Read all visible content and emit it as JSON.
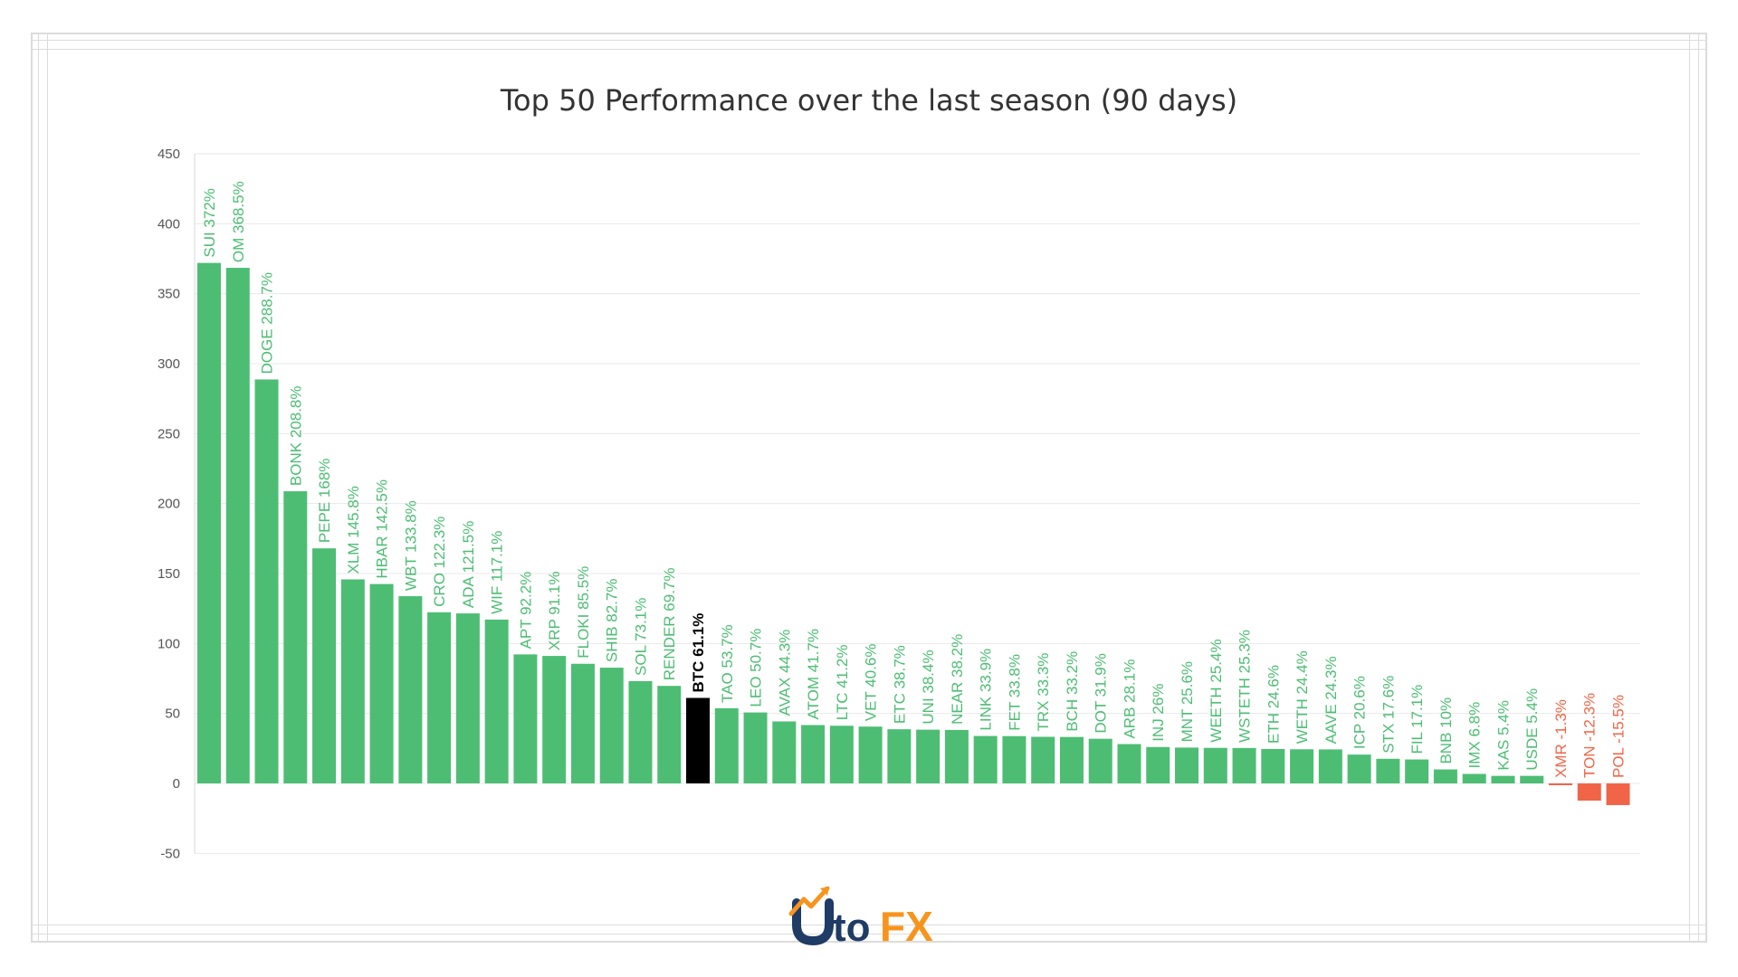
{
  "colors": {
    "positive": "#4dbd74",
    "negative": "#f16448",
    "highlight": "#000000",
    "grid": "#e8e8e8",
    "axis_text": "#555555"
  },
  "chart_data": {
    "type": "bar",
    "title": "Top 50 Performance over the last season (90 days)",
    "xlabel": "",
    "ylabel": "",
    "ylim": [
      -50,
      450
    ],
    "yticks": [
      450,
      400,
      350,
      300,
      250,
      200,
      150,
      100,
      50,
      0,
      -50
    ],
    "grid": true,
    "categories": [
      "SUI",
      "OM",
      "DOGE",
      "BONK",
      "PEPE",
      "XLM",
      "HBAR",
      "WBT",
      "CRO",
      "ADA",
      "WIF",
      "APT",
      "XRP",
      "FLOKI",
      "SHIB",
      "SOL",
      "RENDER",
      "BTC",
      "TAO",
      "LEO",
      "AVAX",
      "ATOM",
      "LTC",
      "VET",
      "ETC",
      "UNI",
      "NEAR",
      "LINK",
      "FET",
      "TRX",
      "BCH",
      "DOT",
      "ARB",
      "INJ",
      "MNT",
      "WEETH",
      "WSTETH",
      "ETH",
      "WETH",
      "AAVE",
      "ICP",
      "STX",
      "FIL",
      "BNB",
      "IMX",
      "KAS",
      "USDE",
      "XMR",
      "TON",
      "POL"
    ],
    "values": [
      372,
      368.5,
      288.7,
      208.8,
      168,
      145.8,
      142.5,
      133.8,
      122.3,
      121.5,
      117.1,
      92.2,
      91.1,
      85.5,
      82.7,
      73.1,
      69.7,
      61.1,
      53.7,
      50.7,
      44.3,
      41.7,
      41.2,
      40.6,
      38.7,
      38.4,
      38.2,
      33.9,
      33.8,
      33.3,
      33.2,
      31.9,
      28.1,
      26,
      25.6,
      25.4,
      25.3,
      24.6,
      24.4,
      24.3,
      20.6,
      17.6,
      17.1,
      10,
      6.8,
      5.4,
      5.4,
      -1.3,
      -12.3,
      -15.5
    ],
    "data_labels": [
      "SUI 372%",
      "OM 368.5%",
      "DOGE 288.7%",
      "BONK 208.8%",
      "PEPE 168%",
      "XLM 145.8%",
      "HBAR 142.5%",
      "WBT 133.8%",
      "CRO 122.3%",
      "ADA 121.5%",
      "WIF 117.1%",
      "APT 92.2%",
      "XRP 91.1%",
      "FLOKI 85.5%",
      "SHIB 82.7%",
      "SOL 73.1%",
      "RENDER 69.7%",
      "BTC 61.1%",
      "TAO 53.7%",
      "LEO 50.7%",
      "AVAX 44.3%",
      "ATOM 41.7%",
      "LTC 41.2%",
      "VET 40.6%",
      "ETC 38.7%",
      "UNI 38.4%",
      "NEAR 38.2%",
      "LINK 33.9%",
      "FET 33.8%",
      "TRX 33.3%",
      "BCH 33.2%",
      "DOT 31.9%",
      "ARB 28.1%",
      "INJ 26%",
      "MNT 25.6%",
      "WEETH 25.4%",
      "WSTETH 25.3%",
      "ETH 24.6%",
      "WETH 24.4%",
      "AAVE 24.3%",
      "ICP 20.6%",
      "STX 17.6%",
      "FIL 17.1%",
      "BNB 10%",
      "IMX 6.8%",
      "KAS 5.4%",
      "USDE 5.4%",
      "XMR -1.3%",
      "TON -12.3%",
      "POL -15.5%"
    ],
    "highlight": "BTC"
  },
  "logo": {
    "text": "UtoFX"
  }
}
